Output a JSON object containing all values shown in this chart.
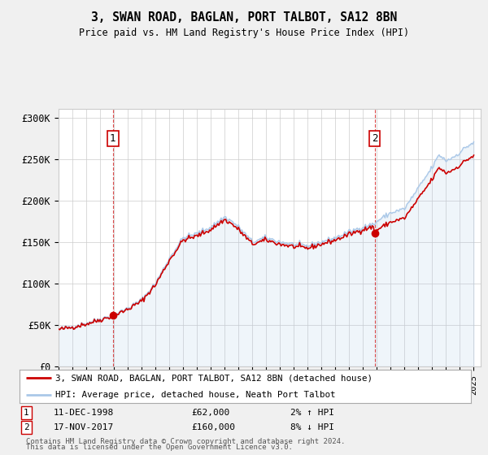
{
  "title": "3, SWAN ROAD, BAGLAN, PORT TALBOT, SA12 8BN",
  "subtitle": "Price paid vs. HM Land Registry's House Price Index (HPI)",
  "sale1_price": 62000,
  "sale1_display": "11-DEC-1998",
  "sale1_hpi_pct": "2% ↑ HPI",
  "sale2_price": 160000,
  "sale2_display": "17-NOV-2017",
  "sale2_hpi_pct": "8% ↓ HPI",
  "legend_line1": "3, SWAN ROAD, BAGLAN, PORT TALBOT, SA12 8BN (detached house)",
  "legend_line2": "HPI: Average price, detached house, Neath Port Talbot",
  "footer": "Contains HM Land Registry data © Crown copyright and database right 2024.\nThis data is licensed under the Open Government Licence v3.0.",
  "line_color_sale": "#cc0000",
  "line_color_hpi": "#aac8e8",
  "plot_bg": "#ffffff",
  "fig_bg": "#f0f0f0",
  "ylim": [
    0,
    310000
  ],
  "yticks": [
    0,
    50000,
    100000,
    150000,
    200000,
    250000,
    300000
  ],
  "ytick_labels": [
    "£0",
    "£50K",
    "£100K",
    "£150K",
    "£200K",
    "£250K",
    "£300K"
  ],
  "hpi_control_years": [
    1995.0,
    1996.0,
    1997.0,
    1998.0,
    1999.0,
    2000.0,
    2001.0,
    2002.0,
    2003.0,
    2004.0,
    2005.0,
    2006.0,
    2007.0,
    2007.5,
    2008.0,
    2009.0,
    2010.0,
    2011.0,
    2012.0,
    2013.0,
    2014.0,
    2015.0,
    2016.0,
    2017.0,
    2017.9,
    2018.0,
    2019.0,
    2020.0,
    2021.0,
    2022.0,
    2022.5,
    2023.0,
    2023.5,
    2024.0,
    2024.5,
    2025.0
  ],
  "hpi_control_vals": [
    45000,
    48000,
    52000,
    57000,
    62000,
    70000,
    80000,
    100000,
    130000,
    155000,
    160000,
    168000,
    180000,
    175000,
    168000,
    150000,
    155000,
    150000,
    147000,
    145000,
    150000,
    155000,
    162000,
    168000,
    172000,
    175000,
    185000,
    190000,
    215000,
    240000,
    255000,
    248000,
    252000,
    258000,
    265000,
    270000
  ],
  "sale1_t": 1998.9167,
  "sale2_t": 2017.8333,
  "xstart": 1995,
  "xend": 2025
}
